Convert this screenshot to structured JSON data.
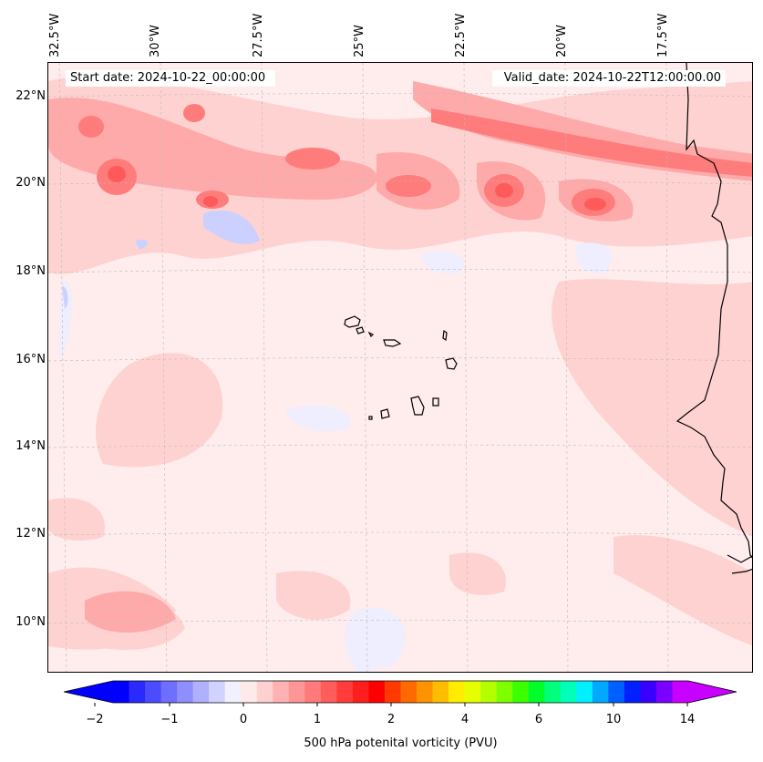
{
  "header": {
    "start_date": "Start date: 2024-10-22_00:00:00",
    "valid_date": "Valid_date: 2024-10-22T12:00:00.00"
  },
  "axes": {
    "longitude_labels": [
      "32.5°W",
      "30°W",
      "27.5°W",
      "25°W",
      "22.5°W",
      "20°W",
      "17.5°W"
    ],
    "latitude_labels": [
      "22°N",
      "20°N",
      "18°N",
      "16°N",
      "14°N",
      "12°N",
      "10°N"
    ]
  },
  "colorbar": {
    "label": "500 hPa potenital vorticity (PVU)",
    "tick_labels": [
      "−2",
      "−1",
      "0",
      "1",
      "2",
      "4",
      "6",
      "10",
      "14"
    ],
    "colors": [
      "#0000ff",
      "#2a2aff",
      "#4b4bff",
      "#6e6eff",
      "#8e8eff",
      "#b0b0ff",
      "#d2d2ff",
      "#f0f0ff",
      "#ffeaea",
      "#ffd0d0",
      "#ffb2b2",
      "#ff9696",
      "#ff7a7a",
      "#ff5c5c",
      "#ff3c3c",
      "#ff1e1e",
      "#ff0000",
      "#ff3a00",
      "#ff6a00",
      "#ff9200",
      "#ffbd00",
      "#ffec00",
      "#e6ff00",
      "#b3ff00",
      "#7eff00",
      "#3cff00",
      "#00ff2a",
      "#00ff7a",
      "#00ffb8",
      "#00f0ff",
      "#00a8ff",
      "#0060ff",
      "#0020ff",
      "#3a00ff",
      "#7a00ff",
      "#c800ff"
    ]
  },
  "map_colors": {
    "ocean_base": "#ffecec",
    "light_red": "#ffd2d2",
    "mid_red": "#ffaaaa",
    "strong_red": "#ff7c7c",
    "deep_red": "#ff5a5a",
    "light_blue": "#eeeeff",
    "mid_blue": "#ccd0ff"
  }
}
